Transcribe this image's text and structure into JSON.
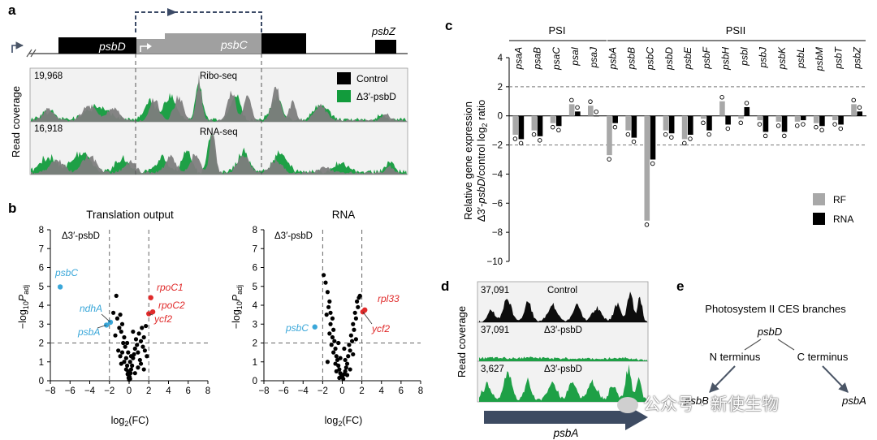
{
  "panels": {
    "a": {
      "label": "a",
      "genes": {
        "psbD": "psbD",
        "psbC": "psbC",
        "psbZ": "psbZ"
      },
      "y_title": "Read coverage",
      "tracks": [
        {
          "max": "19,968",
          "label": "Ribo-seq"
        },
        {
          "max": "16,918",
          "label": "RNA-seq"
        }
      ],
      "legend": [
        {
          "name": "Control",
          "color": "#000000"
        },
        {
          "name": "Δ3′-psbD",
          "color": "#129b3c"
        }
      ]
    },
    "b": {
      "label": "b",
      "y_title": "−log10Padj",
      "x_title": "log2(FC)",
      "left_title": "Translation output",
      "right_title": "RNA",
      "mutant": "Δ3′-psbD",
      "annotations_left": [
        {
          "text": "psbC",
          "color": "#3aa7d9"
        },
        {
          "text": "ndhA",
          "color": "#3aa7d9"
        },
        {
          "text": "psbA",
          "color": "#3aa7d9"
        },
        {
          "text": "rpoC1",
          "color": "#e02a2a"
        },
        {
          "text": "rpoC2",
          "color": "#e02a2a"
        },
        {
          "text": "ycf2",
          "color": "#e02a2a"
        }
      ],
      "annotations_right": [
        {
          "text": "psbC",
          "color": "#3aa7d9"
        },
        {
          "text": "rpl33",
          "color": "#e02a2a"
        },
        {
          "text": "ycf2",
          "color": "#e02a2a"
        }
      ]
    },
    "c": {
      "label": "c",
      "group_psi": "PSI",
      "group_psii": "PSII",
      "y_title_1": "Relative gene expression",
      "y_title_2": "Δ3′-psbD/control log2 ratio",
      "legend": [
        {
          "name": "RF",
          "color": "#a8a8a8"
        },
        {
          "name": "RNA",
          "color": "#000000"
        }
      ]
    },
    "d": {
      "label": "d",
      "y_title": "Read coverage",
      "tracks": [
        {
          "max": "37,091",
          "label": "Control"
        },
        {
          "max": "37,091",
          "label": "Δ3′-psbD"
        },
        {
          "max": "3,627",
          "label": "Δ3′-psbD"
        }
      ],
      "gene": "psbA"
    },
    "e": {
      "label": "e",
      "title": "Photosystem II CES branches",
      "root": "psbD",
      "left_branch": "N terminus",
      "right_branch": "C terminus",
      "left_leaf": "psbB",
      "right_leaf": "psbA"
    }
  },
  "watermark": "公众号 · 新使生物",
  "chart_data": [
    {
      "type": "scatter",
      "title": "Translation output",
      "xlabel": "log2(FC)",
      "ylabel": "−log10Padj",
      "xlim": [
        -8,
        8
      ],
      "ylim": [
        0,
        8
      ],
      "thresholds": {
        "x": [
          -2,
          2
        ],
        "y": 2
      },
      "highlighted": [
        {
          "gene": "psbC",
          "x": -7.0,
          "y": 4.97,
          "color": "#3aa7d9"
        },
        {
          "gene": "ndhA",
          "x": -1.9,
          "y": 3.1,
          "color": "#3aa7d9"
        },
        {
          "gene": "psbA",
          "x": -2.3,
          "y": 2.95,
          "color": "#3aa7d9"
        },
        {
          "gene": "rpoC1",
          "x": 2.2,
          "y": 4.4,
          "color": "#e02a2a"
        },
        {
          "gene": "rpoC2",
          "x": 2.4,
          "y": 3.65,
          "color": "#e02a2a"
        },
        {
          "gene": "ycf2",
          "x": 2.0,
          "y": 3.55,
          "color": "#e02a2a"
        }
      ],
      "points": [
        [
          -1.3,
          4.5
        ],
        [
          -1.6,
          3.6
        ],
        [
          -0.9,
          3.5
        ],
        [
          -1.2,
          3.3
        ],
        [
          -0.7,
          3.0
        ],
        [
          -1.0,
          2.8
        ],
        [
          -0.8,
          2.6
        ],
        [
          -0.5,
          2.3
        ],
        [
          -0.6,
          2.0
        ],
        [
          -0.4,
          1.8
        ],
        [
          -0.7,
          1.5
        ],
        [
          -0.9,
          1.3
        ],
        [
          -0.3,
          1.2
        ],
        [
          -0.5,
          1.0
        ],
        [
          -0.2,
          0.8
        ],
        [
          -0.3,
          0.6
        ],
        [
          -0.1,
          0.5
        ],
        [
          -0.15,
          0.35
        ],
        [
          0.0,
          0.3
        ],
        [
          0.05,
          0.2
        ],
        [
          -0.05,
          0.15
        ],
        [
          0.1,
          0.1
        ],
        [
          0.0,
          0.05
        ],
        [
          0.15,
          0.4
        ],
        [
          0.2,
          0.6
        ],
        [
          0.3,
          0.8
        ],
        [
          0.1,
          1.0
        ],
        [
          0.4,
          1.2
        ],
        [
          0.5,
          1.4
        ],
        [
          0.6,
          1.7
        ],
        [
          0.8,
          1.9
        ],
        [
          0.7,
          2.2
        ],
        [
          1.0,
          2.5
        ],
        [
          1.2,
          2.1
        ],
        [
          0.9,
          1.5
        ],
        [
          1.1,
          1.1
        ],
        [
          1.4,
          1.8
        ],
        [
          1.5,
          2.3
        ],
        [
          1.3,
          2.8
        ],
        [
          1.6,
          1.6
        ],
        [
          1.8,
          1.3
        ],
        [
          1.2,
          0.9
        ],
        [
          0.9,
          0.7
        ],
        [
          1.5,
          0.6
        ],
        [
          -0.8,
          0.9
        ],
        [
          -1.1,
          1.6
        ],
        [
          0.2,
          1.3
        ],
        [
          0.6,
          0.4
        ],
        [
          -0.2,
          2.0
        ],
        [
          -1.4,
          2.4
        ],
        [
          0.4,
          2.6
        ],
        [
          1.7,
          2.9
        ],
        [
          -0.1,
          1.5
        ]
      ]
    },
    {
      "type": "scatter",
      "title": "RNA",
      "xlabel": "log2(FC)",
      "ylabel": "−log10Padj",
      "xlim": [
        -8,
        8
      ],
      "ylim": [
        0,
        8
      ],
      "thresholds": {
        "x": [
          -2,
          2
        ],
        "y": 2
      },
      "highlighted": [
        {
          "gene": "psbC",
          "x": -2.8,
          "y": 2.85,
          "color": "#3aa7d9"
        },
        {
          "gene": "rpl33",
          "x": 2.3,
          "y": 3.75,
          "color": "#e02a2a"
        },
        {
          "gene": "ycf2",
          "x": 2.1,
          "y": 3.65,
          "color": "#e02a2a"
        }
      ],
      "points": [
        [
          -1.9,
          5.6
        ],
        [
          -1.7,
          5.2
        ],
        [
          -1.5,
          4.7
        ],
        [
          -1.3,
          4.2
        ],
        [
          -1.4,
          3.9
        ],
        [
          -1.2,
          3.6
        ],
        [
          -1.6,
          3.5
        ],
        [
          -1.0,
          3.3
        ],
        [
          -1.2,
          3.0
        ],
        [
          -0.9,
          2.7
        ],
        [
          -1.3,
          2.5
        ],
        [
          -1.0,
          2.3
        ],
        [
          -0.8,
          2.1
        ],
        [
          -1.1,
          1.9
        ],
        [
          -0.7,
          1.7
        ],
        [
          -0.9,
          1.5
        ],
        [
          -0.6,
          1.3
        ],
        [
          -0.5,
          1.1
        ],
        [
          -0.7,
          0.9
        ],
        [
          -0.4,
          0.8
        ],
        [
          -0.3,
          0.6
        ],
        [
          -0.2,
          0.4
        ],
        [
          -0.1,
          0.3
        ],
        [
          0.0,
          0.2
        ],
        [
          0.1,
          0.1
        ],
        [
          -0.3,
          0.15
        ],
        [
          0.2,
          0.35
        ],
        [
          0.3,
          0.5
        ],
        [
          0.4,
          0.7
        ],
        [
          0.5,
          0.9
        ],
        [
          0.3,
          1.1
        ],
        [
          0.6,
          1.3
        ],
        [
          0.8,
          1.6
        ],
        [
          0.7,
          1.9
        ],
        [
          1.0,
          2.1
        ],
        [
          0.9,
          2.4
        ],
        [
          1.2,
          2.7
        ],
        [
          1.1,
          3.0
        ],
        [
          1.4,
          3.3
        ],
        [
          1.3,
          3.6
        ],
        [
          1.6,
          3.9
        ],
        [
          1.5,
          4.2
        ],
        [
          1.8,
          4.5
        ],
        [
          1.7,
          4.4
        ],
        [
          1.1,
          1.4
        ],
        [
          0.8,
          0.6
        ],
        [
          -0.4,
          2.0
        ],
        [
          -0.2,
          1.2
        ],
        [
          0.2,
          1.7
        ],
        [
          1.4,
          2.2
        ],
        [
          -1.5,
          1.0
        ],
        [
          0.5,
          0.3
        ],
        [
          -0.6,
          0.5
        ]
      ]
    },
    {
      "type": "bar",
      "title": "",
      "ylabel": "Relative gene expression Δ3′-psbD/control log2 ratio",
      "ylim": [
        -10,
        4
      ],
      "yticks": [
        4,
        2,
        0,
        -2,
        -4,
        -6,
        -8,
        -10
      ],
      "dashed_lines": [
        2,
        -2
      ],
      "groups": [
        {
          "name": "PSI",
          "categories": [
            "psaA",
            "psaB",
            "psaC",
            "psaI",
            "psaJ"
          ]
        },
        {
          "name": "PSII",
          "categories": [
            "psbA",
            "psbB",
            "psbC",
            "psbD",
            "psbE",
            "psbF",
            "psbH",
            "psbI",
            "psbJ",
            "psbK",
            "psbL",
            "psbM",
            "psbT",
            "psbZ"
          ]
        }
      ],
      "categories": [
        "psaA",
        "psaB",
        "psaC",
        "psaI",
        "psaJ",
        "psbA",
        "psbB",
        "psbC",
        "psbD",
        "psbE",
        "psbF",
        "psbH",
        "psbI",
        "psbJ",
        "psbK",
        "psbL",
        "psbM",
        "psbT",
        "psbZ"
      ],
      "series": [
        {
          "name": "RF",
          "color": "#a8a8a8",
          "values": [
            -1.3,
            -1.0,
            -0.5,
            0.8,
            0.7,
            -2.7,
            -1.0,
            -7.2,
            -1.0,
            -1.6,
            -0.2,
            1.0,
            -0.2,
            -0.3,
            -0.4,
            -0.4,
            -0.5,
            -0.3,
            0.8
          ]
        },
        {
          "name": "RNA",
          "color": "#000000",
          "values": [
            -1.6,
            -1.4,
            -0.7,
            0.3,
            0.0,
            -0.5,
            -1.5,
            -3.0,
            -1.2,
            -1.3,
            -1.0,
            -0.6,
            0.6,
            -1.1,
            -1.1,
            -0.3,
            -0.7,
            -0.6,
            0.3
          ]
        }
      ]
    }
  ]
}
